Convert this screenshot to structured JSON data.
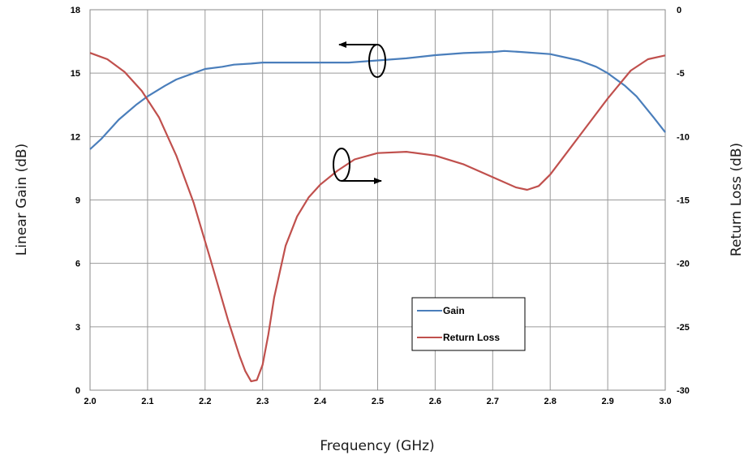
{
  "chart_data": {
    "type": "line",
    "title": "",
    "xlabel": "Frequency (GHz)",
    "ylabel_left": "Linear Gain (dB)",
    "ylabel_right": "Return Loss (dB)",
    "xlim": [
      2.0,
      3.0
    ],
    "ylim_left": [
      0,
      18
    ],
    "ylim_right": [
      -30,
      0
    ],
    "x_ticks": [
      "2.0",
      "2.1",
      "2.2",
      "2.3",
      "2.4",
      "2.5",
      "2.6",
      "2.7",
      "2.8",
      "2.9",
      "3.0"
    ],
    "y_left_ticks": [
      "0",
      "3",
      "6",
      "9",
      "12",
      "15",
      "18"
    ],
    "y_right_ticks": [
      "-30",
      "-25",
      "-20",
      "-15",
      "-10",
      "-5",
      "0"
    ],
    "grid": true,
    "legend_position": "lower-center",
    "series": [
      {
        "name": "Gain",
        "axis": "left",
        "color": "#4a7ebb",
        "x": [
          2.0,
          2.02,
          2.05,
          2.08,
          2.1,
          2.13,
          2.15,
          2.18,
          2.2,
          2.23,
          2.25,
          2.28,
          2.3,
          2.35,
          2.4,
          2.45,
          2.5,
          2.55,
          2.6,
          2.65,
          2.7,
          2.72,
          2.75,
          2.8,
          2.85,
          2.88,
          2.9,
          2.93,
          2.95,
          2.98,
          3.0
        ],
        "y": [
          11.4,
          11.9,
          12.8,
          13.5,
          13.9,
          14.4,
          14.7,
          15.0,
          15.2,
          15.3,
          15.4,
          15.45,
          15.5,
          15.5,
          15.5,
          15.5,
          15.6,
          15.7,
          15.85,
          15.95,
          16.0,
          16.05,
          16.0,
          15.9,
          15.6,
          15.3,
          15.0,
          14.4,
          13.9,
          12.9,
          12.2
        ]
      },
      {
        "name": "Return Loss",
        "axis": "right",
        "color": "#c0504d",
        "x": [
          2.0,
          2.03,
          2.06,
          2.09,
          2.12,
          2.15,
          2.18,
          2.21,
          2.24,
          2.26,
          2.27,
          2.28,
          2.29,
          2.3,
          2.31,
          2.32,
          2.34,
          2.36,
          2.38,
          2.4,
          2.43,
          2.46,
          2.5,
          2.55,
          2.6,
          2.65,
          2.7,
          2.74,
          2.76,
          2.78,
          2.8,
          2.83,
          2.86,
          2.9,
          2.94,
          2.97,
          3.0
        ],
        "y": [
          -3.4,
          -3.9,
          -4.9,
          -6.4,
          -8.5,
          -11.5,
          -15.2,
          -19.8,
          -24.5,
          -27.3,
          -28.5,
          -29.3,
          -29.2,
          -28.0,
          -25.6,
          -22.7,
          -18.6,
          -16.3,
          -14.8,
          -13.8,
          -12.7,
          -11.8,
          -11.3,
          -11.2,
          -11.5,
          -12.2,
          -13.2,
          -14.0,
          -14.2,
          -13.9,
          -13.0,
          -11.2,
          -9.4,
          -7.0,
          -4.8,
          -3.9,
          -3.6
        ]
      }
    ]
  }
}
